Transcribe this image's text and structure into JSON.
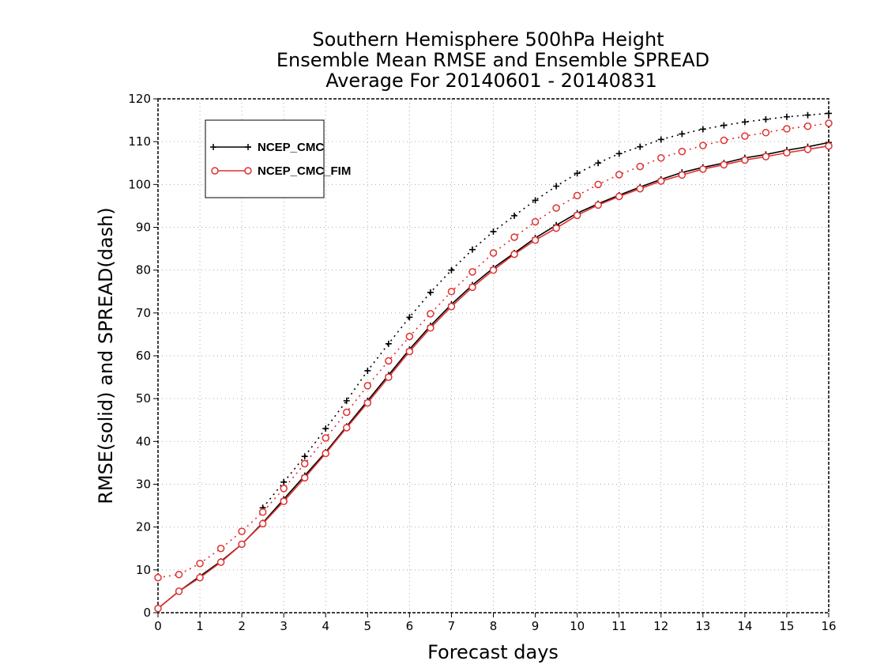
{
  "chart_data": {
    "type": "line",
    "title": [
      "Southern Hemisphere 500hPa Height",
      "Ensemble Mean RMSE and Ensemble SPREAD",
      "Average For 20140601 - 20140831"
    ],
    "xlabel": "Forecast days",
    "ylabel": "RMSE(solid) and SPREAD(dash)",
    "xlim": [
      0,
      16
    ],
    "ylim": [
      0,
      120
    ],
    "xticks": [
      0,
      1,
      2,
      3,
      4,
      5,
      6,
      7,
      8,
      9,
      10,
      11,
      12,
      13,
      14,
      15,
      16
    ],
    "yticks": [
      0,
      10,
      20,
      30,
      40,
      50,
      60,
      70,
      80,
      90,
      100,
      110,
      120
    ],
    "grid": true,
    "legend_position": "top-left",
    "x": [
      0,
      0.5,
      1,
      1.5,
      2,
      2.5,
      3,
      3.5,
      4,
      4.5,
      5,
      5.5,
      6,
      6.5,
      7,
      7.5,
      8,
      8.5,
      9,
      9.5,
      10,
      10.5,
      11,
      11.5,
      12,
      12.5,
      13,
      13.5,
      14,
      14.5,
      15,
      15.5,
      16
    ],
    "series": [
      {
        "name": "NCEP_CMC",
        "color": "#000000",
        "marker": "plus",
        "rmse": [
          1,
          5,
          8.5,
          12,
          16,
          21,
          26.5,
          32,
          37.5,
          43.5,
          49.5,
          55.5,
          61.5,
          67,
          72,
          76.5,
          80.5,
          84,
          87.5,
          90.5,
          93.3,
          95.5,
          97.5,
          99.4,
          101.2,
          102.8,
          104,
          105,
          106.2,
          107,
          108,
          108.8,
          109.8
        ],
        "spread": [
          null,
          null,
          null,
          null,
          null,
          24.5,
          30.5,
          36.5,
          43,
          49.5,
          56.5,
          62.8,
          69,
          74.8,
          80,
          84.8,
          89,
          92.7,
          96.3,
          99.6,
          102.6,
          105,
          107.2,
          108.8,
          110.5,
          111.8,
          112.9,
          113.8,
          114.6,
          115.2,
          115.8,
          116.2,
          116.6
        ]
      },
      {
        "name": "NCEP_CMC_FIM",
        "color": "#e03030",
        "marker": "circle",
        "rmse": [
          1,
          5,
          8.2,
          11.8,
          16,
          20.8,
          26,
          31.5,
          37.2,
          43.2,
          49,
          55,
          61,
          66.5,
          71.5,
          76,
          80,
          83.7,
          87,
          89.8,
          92.8,
          95.2,
          97.2,
          99,
          100.8,
          102.2,
          103.6,
          104.6,
          105.7,
          106.5,
          107.4,
          108.2,
          109
        ],
        "spread": [
          8.2,
          8.9,
          11.5,
          15,
          19,
          23.5,
          29,
          34.8,
          40.8,
          46.8,
          53,
          58.8,
          64.5,
          69.8,
          75,
          79.6,
          84,
          87.7,
          91.3,
          94.5,
          97.4,
          100,
          102.3,
          104.2,
          106.2,
          107.7,
          109.1,
          110.3,
          111.3,
          112.1,
          113,
          113.6,
          114.3
        ]
      }
    ]
  }
}
